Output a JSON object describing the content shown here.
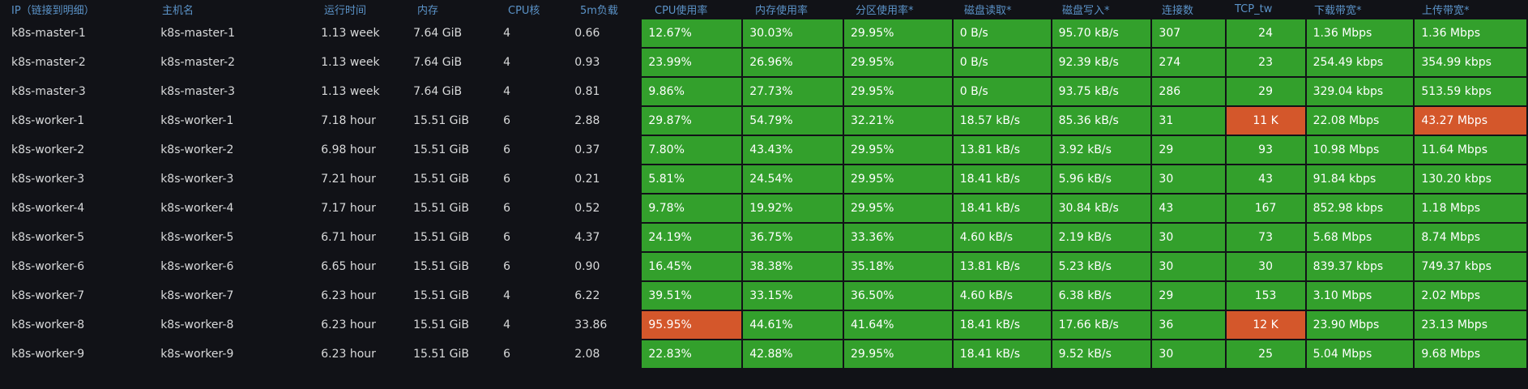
{
  "colors": {
    "background": "#111217",
    "header_text": "#5b93c8",
    "ok": "#33a02c",
    "warn": "#d4572b",
    "text": "#d8d9da"
  },
  "headers": [
    "IP（链接到明细）",
    "主机名",
    "运行时间",
    "内存",
    "CPU核",
    "5m负载",
    "CPU使用率",
    "内存使用率",
    "分区使用率*",
    "磁盘读取*",
    "磁盘写入*",
    "连接数",
    "TCP_tw",
    "下载带宽*",
    "上传带宽*"
  ],
  "rows": [
    {
      "ip": "k8s-master-1",
      "host": "k8s-master-1",
      "uptime": "1.13 week",
      "mem": "7.64 GiB",
      "cpu": "4",
      "load": "0.66",
      "cpu_pct": "12.67%",
      "mem_pct": "30.03%",
      "disk_pct": "29.95%",
      "read": "0 B/s",
      "write": "95.70 kB/s",
      "conn": "307",
      "tcp_tw": "24",
      "down": "1.36 Mbps",
      "up": "1.36 Mbps",
      "warn": []
    },
    {
      "ip": "k8s-master-2",
      "host": "k8s-master-2",
      "uptime": "1.13 week",
      "mem": "7.64 GiB",
      "cpu": "4",
      "load": "0.93",
      "cpu_pct": "23.99%",
      "mem_pct": "26.96%",
      "disk_pct": "29.95%",
      "read": "0 B/s",
      "write": "92.39 kB/s",
      "conn": "274",
      "tcp_tw": "23",
      "down": "254.49 kbps",
      "up": "354.99 kbps",
      "warn": []
    },
    {
      "ip": "k8s-master-3",
      "host": "k8s-master-3",
      "uptime": "1.13 week",
      "mem": "7.64 GiB",
      "cpu": "4",
      "load": "0.81",
      "cpu_pct": "9.86%",
      "mem_pct": "27.73%",
      "disk_pct": "29.95%",
      "read": "0 B/s",
      "write": "93.75 kB/s",
      "conn": "286",
      "tcp_tw": "29",
      "down": "329.04 kbps",
      "up": "513.59 kbps",
      "warn": []
    },
    {
      "ip": "k8s-worker-1",
      "host": "k8s-worker-1",
      "uptime": "7.18 hour",
      "mem": "15.51 GiB",
      "cpu": "6",
      "load": "2.88",
      "cpu_pct": "29.87%",
      "mem_pct": "54.79%",
      "disk_pct": "32.21%",
      "read": "18.57 kB/s",
      "write": "85.36 kB/s",
      "conn": "31",
      "tcp_tw": "11 K",
      "down": "22.08 Mbps",
      "up": "43.27 Mbps",
      "warn": [
        "tcp_tw",
        "up"
      ]
    },
    {
      "ip": "k8s-worker-2",
      "host": "k8s-worker-2",
      "uptime": "6.98 hour",
      "mem": "15.51 GiB",
      "cpu": "6",
      "load": "0.37",
      "cpu_pct": "7.80%",
      "mem_pct": "43.43%",
      "disk_pct": "29.95%",
      "read": "13.81 kB/s",
      "write": "3.92 kB/s",
      "conn": "29",
      "tcp_tw": "93",
      "down": "10.98 Mbps",
      "up": "11.64 Mbps",
      "warn": []
    },
    {
      "ip": "k8s-worker-3",
      "host": "k8s-worker-3",
      "uptime": "7.21 hour",
      "mem": "15.51 GiB",
      "cpu": "6",
      "load": "0.21",
      "cpu_pct": "5.81%",
      "mem_pct": "24.54%",
      "disk_pct": "29.95%",
      "read": "18.41 kB/s",
      "write": "5.96 kB/s",
      "conn": "30",
      "tcp_tw": "43",
      "down": "91.84 kbps",
      "up": "130.20 kbps",
      "warn": []
    },
    {
      "ip": "k8s-worker-4",
      "host": "k8s-worker-4",
      "uptime": "7.17 hour",
      "mem": "15.51 GiB",
      "cpu": "6",
      "load": "0.52",
      "cpu_pct": "9.78%",
      "mem_pct": "19.92%",
      "disk_pct": "29.95%",
      "read": "18.41 kB/s",
      "write": "30.84 kB/s",
      "conn": "43",
      "tcp_tw": "167",
      "down": "852.98 kbps",
      "up": "1.18 Mbps",
      "warn": []
    },
    {
      "ip": "k8s-worker-5",
      "host": "k8s-worker-5",
      "uptime": "6.71 hour",
      "mem": "15.51 GiB",
      "cpu": "6",
      "load": "4.37",
      "cpu_pct": "24.19%",
      "mem_pct": "36.75%",
      "disk_pct": "33.36%",
      "read": "4.60 kB/s",
      "write": "2.19 kB/s",
      "conn": "30",
      "tcp_tw": "73",
      "down": "5.68 Mbps",
      "up": "8.74 Mbps",
      "warn": []
    },
    {
      "ip": "k8s-worker-6",
      "host": "k8s-worker-6",
      "uptime": "6.65 hour",
      "mem": "15.51 GiB",
      "cpu": "6",
      "load": "0.90",
      "cpu_pct": "16.45%",
      "mem_pct": "38.38%",
      "disk_pct": "35.18%",
      "read": "13.81 kB/s",
      "write": "5.23 kB/s",
      "conn": "30",
      "tcp_tw": "30",
      "down": "839.37 kbps",
      "up": "749.37 kbps",
      "warn": []
    },
    {
      "ip": "k8s-worker-7",
      "host": "k8s-worker-7",
      "uptime": "6.23 hour",
      "mem": "15.51 GiB",
      "cpu": "4",
      "load": "6.22",
      "cpu_pct": "39.51%",
      "mem_pct": "33.15%",
      "disk_pct": "36.50%",
      "read": "4.60 kB/s",
      "write": "6.38 kB/s",
      "conn": "29",
      "tcp_tw": "153",
      "down": "3.10 Mbps",
      "up": "2.02 Mbps",
      "warn": []
    },
    {
      "ip": "k8s-worker-8",
      "host": "k8s-worker-8",
      "uptime": "6.23 hour",
      "mem": "15.51 GiB",
      "cpu": "4",
      "load": "33.86",
      "cpu_pct": "95.95%",
      "mem_pct": "44.61%",
      "disk_pct": "41.64%",
      "read": "18.41 kB/s",
      "write": "17.66 kB/s",
      "conn": "36",
      "tcp_tw": "12 K",
      "down": "23.90 Mbps",
      "up": "23.13 Mbps",
      "warn": [
        "cpu_pct",
        "tcp_tw"
      ]
    },
    {
      "ip": "k8s-worker-9",
      "host": "k8s-worker-9",
      "uptime": "6.23 hour",
      "mem": "15.51 GiB",
      "cpu": "6",
      "load": "2.08",
      "cpu_pct": "22.83%",
      "mem_pct": "42.88%",
      "disk_pct": "29.95%",
      "read": "18.41 kB/s",
      "write": "9.52 kB/s",
      "conn": "30",
      "tcp_tw": "25",
      "down": "5.04 Mbps",
      "up": "9.68 Mbps",
      "warn": []
    }
  ]
}
